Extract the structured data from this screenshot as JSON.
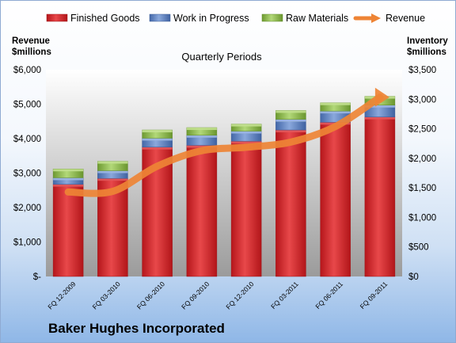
{
  "company": "Baker Hughes Incorporated",
  "colors": {
    "finished_goods": "#d42a2d",
    "work_in_progress": "#5f86c9",
    "raw_materials": "#8ebd4b",
    "revenue": "#ee8435",
    "plot_top": "#ffffff",
    "plot_bottom": "#9b9b9b"
  },
  "chart_data": {
    "type": "bar",
    "stacked": true,
    "title": "Quarterly Periods",
    "left_axis_label": "Revenue $millions",
    "right_axis_label": "Inventory $millions",
    "left_ylim": [
      0,
      6000
    ],
    "right_ylim": [
      0,
      3500
    ],
    "left_ticks": [
      "$-",
      "$1,000",
      "$2,000",
      "$3,000",
      "$4,000",
      "$5,000",
      "$6,000"
    ],
    "right_ticks": [
      "$0",
      "$500",
      "$1,000",
      "$1,500",
      "$2,000",
      "$2,500",
      "$3,000",
      "$3,500"
    ],
    "categories": [
      "FQ 12-2009",
      "FQ 03-2010",
      "FQ 06-2010",
      "FQ 09-2010",
      "FQ 12-2010",
      "FQ 03-2011",
      "FQ 06-2011",
      "FQ 09-2011"
    ],
    "series": [
      {
        "name": "Finished Goods",
        "axis": "right",
        "kind": "bar",
        "values": [
          1560,
          1660,
          2190,
          2220,
          2290,
          2480,
          2610,
          2700
        ]
      },
      {
        "name": "Work in Progress",
        "axis": "right",
        "kind": "bar",
        "values": [
          110,
          130,
          150,
          170,
          170,
          180,
          190,
          200
        ]
      },
      {
        "name": "Raw Materials",
        "axis": "right",
        "kind": "bar",
        "values": [
          150,
          160,
          140,
          130,
          120,
          150,
          140,
          150
        ]
      },
      {
        "name": "Revenue",
        "axis": "left",
        "kind": "line",
        "values": [
          2450,
          2470,
          3200,
          3650,
          3750,
          3900,
          4350,
          5200
        ]
      }
    ],
    "legend_position": "top",
    "grid": false
  }
}
